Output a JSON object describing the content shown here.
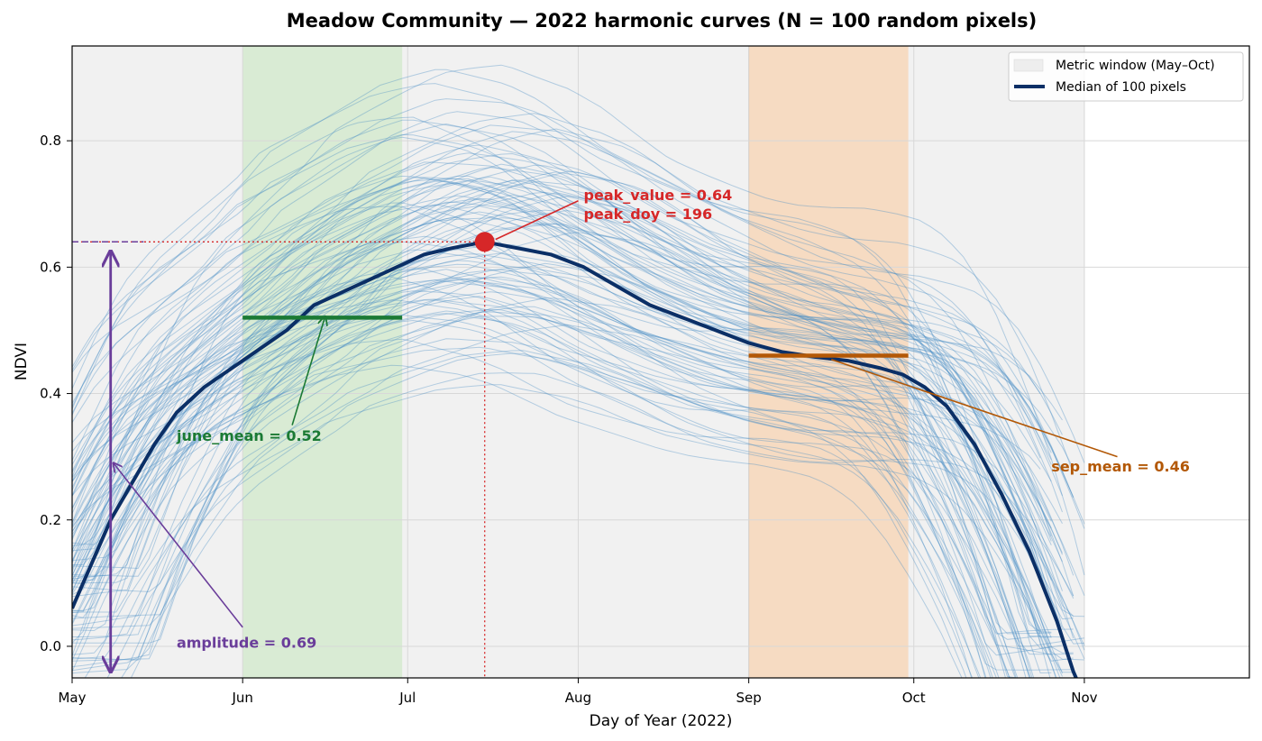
{
  "chart_data": {
    "type": "line",
    "title": "Meadow Community — 2022 harmonic curves (N = 100 random pixels)",
    "xlabel": "Day of Year (2022)",
    "ylabel": "NDVI",
    "xlim": [
      121,
      335
    ],
    "ylim": [
      -0.05,
      0.95
    ],
    "x_ticks": [
      {
        "day": 121,
        "label": "May"
      },
      {
        "day": 152,
        "label": "Jun"
      },
      {
        "day": 182,
        "label": "Jul"
      },
      {
        "day": 213,
        "label": "Aug"
      },
      {
        "day": 244,
        "label": "Sep"
      },
      {
        "day": 274,
        "label": "Oct"
      },
      {
        "day": 305,
        "label": "Nov"
      }
    ],
    "y_ticks": [
      {
        "value": 0.0,
        "label": "0.0"
      },
      {
        "value": 0.2,
        "label": "0.2"
      },
      {
        "value": 0.4,
        "label": "0.4"
      },
      {
        "value": 0.6,
        "label": "0.6"
      },
      {
        "value": 0.8,
        "label": "0.8"
      }
    ],
    "grid": true,
    "legend": {
      "placement": "top-right",
      "entries": [
        {
          "label": "Metric window (May–Oct)",
          "kind": "patch",
          "color": "#eeeeee"
        },
        {
          "label": "Median of 100 pixels",
          "kind": "line",
          "color": "#0b2f66"
        }
      ]
    },
    "metric_window": [
      121,
      305
    ],
    "june_window": [
      152,
      181
    ],
    "sep_window": [
      244,
      273
    ],
    "median_series": {
      "name": "Median of 100 pixels",
      "points": [
        [
          121,
          0.06
        ],
        [
          125,
          0.14
        ],
        [
          128,
          0.2
        ],
        [
          132,
          0.26
        ],
        [
          136,
          0.32
        ],
        [
          140,
          0.37
        ],
        [
          145,
          0.41
        ],
        [
          150,
          0.44
        ],
        [
          155,
          0.47
        ],
        [
          160,
          0.5
        ],
        [
          165,
          0.54
        ],
        [
          170,
          0.56
        ],
        [
          175,
          0.58
        ],
        [
          180,
          0.6
        ],
        [
          185,
          0.62
        ],
        [
          190,
          0.63
        ],
        [
          196,
          0.64
        ],
        [
          202,
          0.63
        ],
        [
          208,
          0.62
        ],
        [
          214,
          0.6
        ],
        [
          220,
          0.57
        ],
        [
          226,
          0.54
        ],
        [
          232,
          0.52
        ],
        [
          238,
          0.5
        ],
        [
          244,
          0.48
        ],
        [
          250,
          0.466
        ],
        [
          256,
          0.458
        ],
        [
          262,
          0.452
        ],
        [
          268,
          0.44
        ],
        [
          272,
          0.43
        ],
        [
          276,
          0.41
        ],
        [
          280,
          0.38
        ],
        [
          285,
          0.32
        ],
        [
          290,
          0.24
        ],
        [
          295,
          0.15
        ],
        [
          300,
          0.04
        ],
        [
          303,
          -0.04
        ],
        [
          304,
          -0.06
        ]
      ]
    },
    "pixel_curves_count": 100,
    "annotations": {
      "peak": {
        "day": 196,
        "value": 0.64,
        "label_value": "peak_value = 0.64",
        "label_doy": "peak_doy = 196",
        "color": "#d62728"
      },
      "june_mean": {
        "value": 0.52,
        "label": "june_mean = 0.52",
        "color": "#1b7a34"
      },
      "sep_mean": {
        "value": 0.46,
        "label": "sep_mean = 0.46",
        "color": "#b35806"
      },
      "amplitude": {
        "value": 0.69,
        "label": "amplitude = 0.69",
        "color": "#6a3d9a"
      }
    },
    "colors": {
      "pixel_curve": "#4a8fc4",
      "june_band": "#d9ebd4",
      "sep_band": "#f6dbc2",
      "metric_band": "#f1f1f1"
    }
  }
}
